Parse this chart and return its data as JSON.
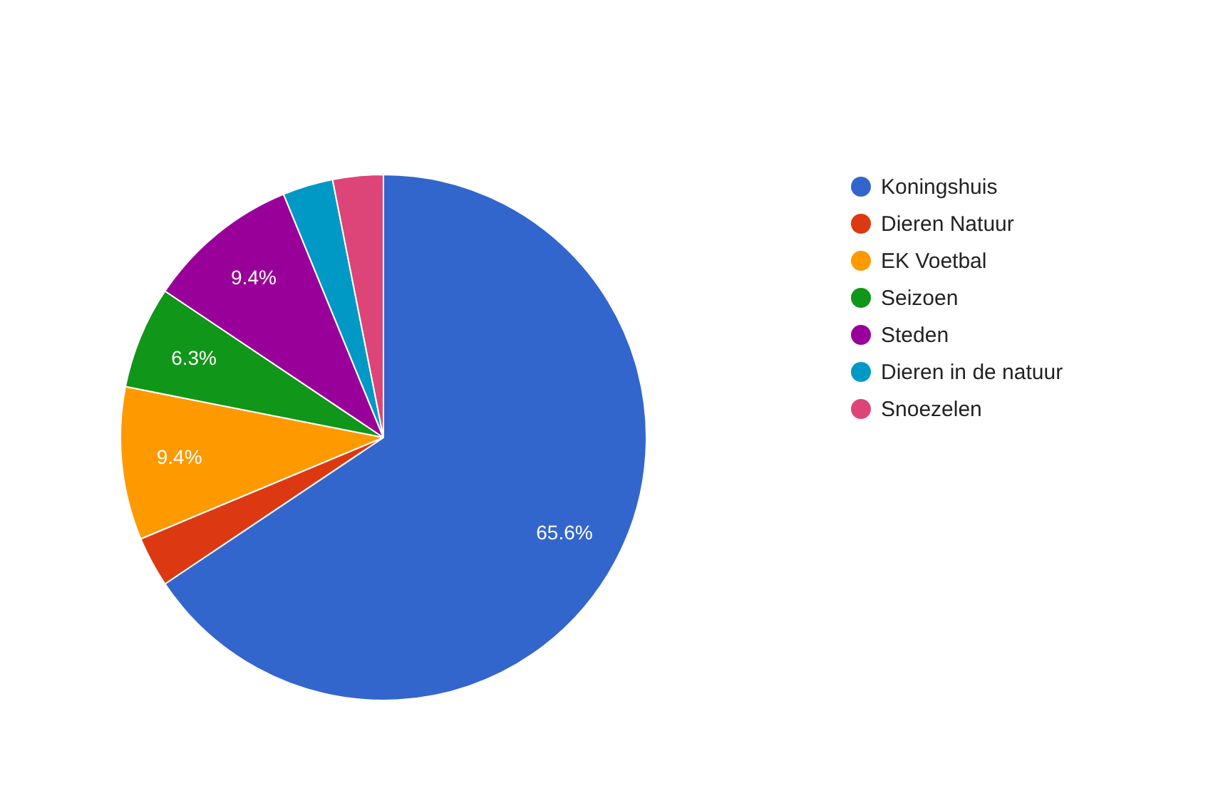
{
  "chart_data": {
    "type": "pie",
    "categories": [
      "Koningshuis",
      "Dieren Natuur",
      "EK Voetbal",
      "Seizoen",
      "Steden",
      "Dieren in de natuur",
      "Snoezelen"
    ],
    "values": [
      65.6,
      3.1,
      9.4,
      6.3,
      9.4,
      3.1,
      3.1
    ],
    "colors": [
      "#3366cc",
      "#dc3912",
      "#ff9900",
      "#109618",
      "#990099",
      "#0099c6",
      "#dd4477"
    ],
    "value_labels": [
      "65.6%",
      null,
      "9.4%",
      "6.3%",
      "9.4%",
      null,
      null
    ],
    "legend": "right"
  }
}
